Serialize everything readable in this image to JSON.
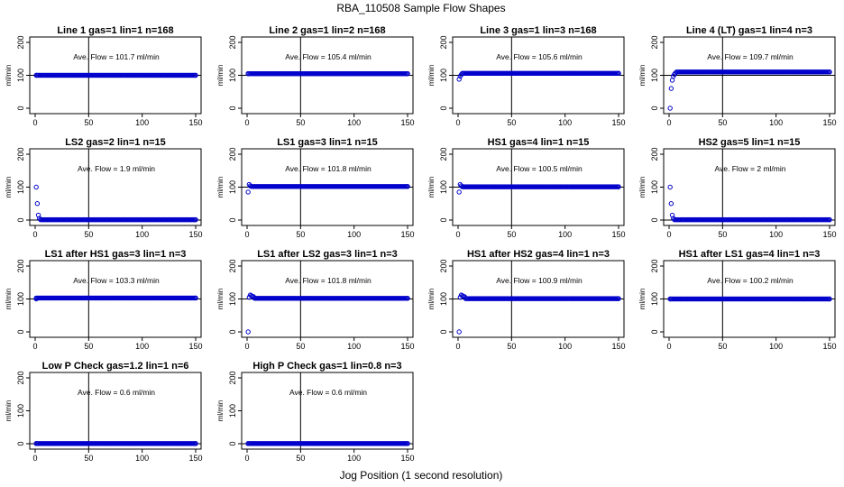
{
  "figure": {
    "title": "RBA_110508  Sample Flow Shapes",
    "xlabel": "Jog Position (1 second resolution)"
  },
  "chart_data": [
    {
      "type": "scatter",
      "title": "Line 1 gas=1 lin=1 n=168",
      "ylabel": "ml/min",
      "annotation": "Ave. Flow = 101.7  ml/min",
      "xlim": [
        0,
        150
      ],
      "ylim": [
        0,
        200
      ],
      "xticks": [
        0,
        50,
        100,
        150
      ],
      "yticks": [
        0,
        100,
        200
      ],
      "hline": 100,
      "vline": 50,
      "points": [
        [
          1,
          100
        ],
        [
          150,
          100
        ]
      ],
      "flat_start": 1,
      "flat_end": 150,
      "flat_value": 100
    },
    {
      "type": "scatter",
      "title": "Line 2 gas=1 lin=2 n=168",
      "ylabel": "ml/min",
      "annotation": "Ave. Flow = 105.4  ml/min",
      "xlim": [
        0,
        150
      ],
      "ylim": [
        0,
        200
      ],
      "xticks": [
        0,
        50,
        100,
        150
      ],
      "yticks": [
        0,
        100,
        200
      ],
      "hline": 100,
      "vline": 50,
      "points": [
        [
          1,
          105
        ],
        [
          150,
          105
        ]
      ],
      "flat_start": 1,
      "flat_end": 150,
      "flat_value": 105
    },
    {
      "type": "scatter",
      "title": "Line 3 gas=1 lin=3 n=168",
      "ylabel": "ml/min",
      "annotation": "Ave. Flow = 105.6  ml/min",
      "xlim": [
        0,
        150
      ],
      "ylim": [
        0,
        200
      ],
      "xticks": [
        0,
        50,
        100,
        150
      ],
      "yticks": [
        0,
        100,
        200
      ],
      "hline": 100,
      "vline": 50,
      "points": [
        [
          1,
          88
        ],
        [
          2,
          97
        ],
        [
          3,
          102
        ],
        [
          150,
          106
        ]
      ],
      "flat_start": 4,
      "flat_end": 150,
      "flat_value": 106
    },
    {
      "type": "scatter",
      "title": "Line 4 (LT) gas=1 lin=4 n=3",
      "ylabel": "ml/min",
      "annotation": "Ave. Flow = 109.7  ml/min",
      "xlim": [
        0,
        150
      ],
      "ylim": [
        0,
        200
      ],
      "xticks": [
        0,
        50,
        100,
        150
      ],
      "yticks": [
        0,
        100,
        200
      ],
      "hline": 100,
      "vline": 50,
      "points": [
        [
          1,
          0
        ],
        [
          2,
          60
        ],
        [
          3,
          85
        ],
        [
          4,
          97
        ],
        [
          5,
          103
        ],
        [
          6,
          107
        ],
        [
          150,
          110
        ]
      ],
      "flat_start": 7,
      "flat_end": 150,
      "flat_value": 110
    },
    {
      "type": "scatter",
      "title": "LS2 gas=2 lin=1 n=15",
      "ylabel": "ml/min",
      "annotation": "Ave. Flow = 1.9  ml/min",
      "xlim": [
        0,
        150
      ],
      "ylim": [
        0,
        200
      ],
      "xticks": [
        0,
        50,
        100,
        150
      ],
      "yticks": [
        0,
        100,
        200
      ],
      "hline": 0,
      "vline": 50,
      "points": [
        [
          1,
          100
        ],
        [
          2,
          50
        ],
        [
          3,
          15
        ],
        [
          4,
          5
        ],
        [
          150,
          1
        ]
      ],
      "flat_start": 5,
      "flat_end": 150,
      "flat_value": 1
    },
    {
      "type": "scatter",
      "title": "LS1 gas=3 lin=1 n=15",
      "ylabel": "ml/min",
      "annotation": "Ave. Flow = 101.8  ml/min",
      "xlim": [
        0,
        150
      ],
      "ylim": [
        0,
        200
      ],
      "xticks": [
        0,
        50,
        100,
        150
      ],
      "yticks": [
        0,
        100,
        200
      ],
      "hline": 100,
      "vline": 50,
      "points": [
        [
          1,
          85
        ],
        [
          2,
          108
        ],
        [
          3,
          104
        ],
        [
          150,
          102
        ]
      ],
      "flat_start": 4,
      "flat_end": 150,
      "flat_value": 102
    },
    {
      "type": "scatter",
      "title": "HS1 gas=4 lin=1 n=15",
      "ylabel": "ml/min",
      "annotation": "Ave. Flow = 100.5  ml/min",
      "xlim": [
        0,
        150
      ],
      "ylim": [
        0,
        200
      ],
      "xticks": [
        0,
        50,
        100,
        150
      ],
      "yticks": [
        0,
        100,
        200
      ],
      "hline": 100,
      "vline": 50,
      "points": [
        [
          1,
          85
        ],
        [
          2,
          108
        ],
        [
          3,
          104
        ],
        [
          150,
          101
        ]
      ],
      "flat_start": 4,
      "flat_end": 150,
      "flat_value": 101
    },
    {
      "type": "scatter",
      "title": "HS2 gas=5 lin=1 n=15",
      "ylabel": "ml/min",
      "annotation": "Ave. Flow = 2  ml/min",
      "xlim": [
        0,
        150
      ],
      "ylim": [
        0,
        200
      ],
      "xticks": [
        0,
        50,
        100,
        150
      ],
      "yticks": [
        0,
        100,
        200
      ],
      "hline": 0,
      "vline": 50,
      "points": [
        [
          1,
          100
        ],
        [
          2,
          50
        ],
        [
          3,
          15
        ],
        [
          4,
          5
        ],
        [
          150,
          1
        ]
      ],
      "flat_start": 5,
      "flat_end": 150,
      "flat_value": 1
    },
    {
      "type": "scatter",
      "title": "LS1 after HS1 gas=3 lin=1 n=3",
      "ylabel": "ml/min",
      "annotation": "Ave. Flow = 103.3  ml/min",
      "xlim": [
        0,
        150
      ],
      "ylim": [
        0,
        200
      ],
      "xticks": [
        0,
        50,
        100,
        150
      ],
      "yticks": [
        0,
        100,
        200
      ],
      "hline": 100,
      "vline": 50,
      "points": [
        [
          1,
          100
        ],
        [
          150,
          103
        ]
      ],
      "flat_start": 1,
      "flat_end": 150,
      "flat_value": 103
    },
    {
      "type": "scatter",
      "title": "LS1 after LS2 gas=3 lin=1 n=3",
      "ylabel": "ml/min",
      "annotation": "Ave. Flow = 101.8  ml/min",
      "xlim": [
        0,
        150
      ],
      "ylim": [
        0,
        200
      ],
      "xticks": [
        0,
        50,
        100,
        150
      ],
      "yticks": [
        0,
        100,
        200
      ],
      "hline": 100,
      "vline": 50,
      "points": [
        [
          1,
          0
        ],
        [
          2,
          105
        ],
        [
          3,
          112
        ],
        [
          4,
          110
        ],
        [
          5,
          108
        ],
        [
          6,
          107
        ],
        [
          150,
          102
        ]
      ],
      "flat_start": 7,
      "flat_end": 150,
      "flat_value": 102
    },
    {
      "type": "scatter",
      "title": "HS1 after HS2 gas=4 lin=1 n=3",
      "ylabel": "ml/min",
      "annotation": "Ave. Flow = 100.9  ml/min",
      "xlim": [
        0,
        150
      ],
      "ylim": [
        0,
        200
      ],
      "xticks": [
        0,
        50,
        100,
        150
      ],
      "yticks": [
        0,
        100,
        200
      ],
      "hline": 100,
      "vline": 50,
      "points": [
        [
          1,
          0
        ],
        [
          2,
          105
        ],
        [
          3,
          112
        ],
        [
          4,
          110
        ],
        [
          5,
          108
        ],
        [
          6,
          107
        ],
        [
          150,
          101
        ]
      ],
      "flat_start": 7,
      "flat_end": 150,
      "flat_value": 101
    },
    {
      "type": "scatter",
      "title": "HS1 after LS1 gas=4 lin=1 n=3",
      "ylabel": "ml/min",
      "annotation": "Ave. Flow = 100.2  ml/min",
      "xlim": [
        0,
        150
      ],
      "ylim": [
        0,
        200
      ],
      "xticks": [
        0,
        50,
        100,
        150
      ],
      "yticks": [
        0,
        100,
        200
      ],
      "hline": 100,
      "vline": 50,
      "points": [
        [
          1,
          100
        ],
        [
          150,
          100
        ]
      ],
      "flat_start": 1,
      "flat_end": 150,
      "flat_value": 100
    },
    {
      "type": "scatter",
      "title": "Low P Check gas=1.2 lin=1 n=6",
      "ylabel": "ml/min",
      "annotation": "Ave. Flow = 0.6  ml/min",
      "xlim": [
        0,
        150
      ],
      "ylim": [
        0,
        200
      ],
      "xticks": [
        0,
        50,
        100,
        150
      ],
      "yticks": [
        0,
        100,
        200
      ],
      "hline": 0,
      "vline": 50,
      "points": [
        [
          1,
          0.6
        ],
        [
          150,
          0.6
        ]
      ],
      "flat_start": 1,
      "flat_end": 150,
      "flat_value": 0.6
    },
    {
      "type": "scatter",
      "title": "High P Check gas=1 lin=0.8 n=3",
      "ylabel": "ml/min",
      "annotation": "Ave. Flow = 0.6  ml/min",
      "xlim": [
        0,
        150
      ],
      "ylim": [
        0,
        200
      ],
      "xticks": [
        0,
        50,
        100,
        150
      ],
      "yticks": [
        0,
        100,
        200
      ],
      "hline": 0,
      "vline": 50,
      "points": [
        [
          1,
          0.6
        ],
        [
          150,
          0.6
        ]
      ],
      "flat_start": 1,
      "flat_end": 150,
      "flat_value": 0.6
    }
  ]
}
